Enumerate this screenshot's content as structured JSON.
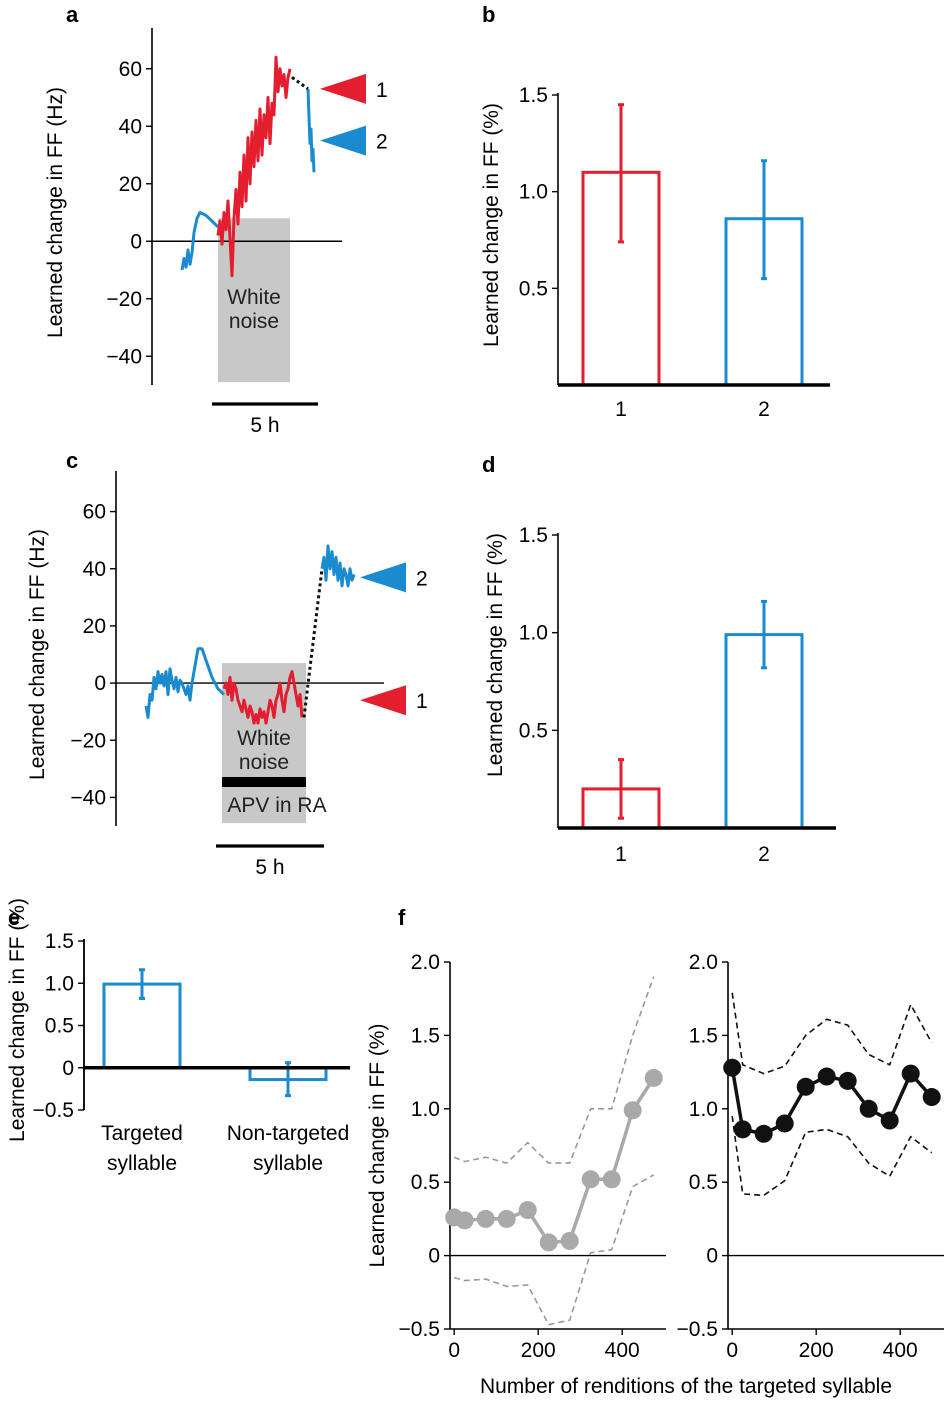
{
  "colors": {
    "red": "#e31e2e",
    "blue": "#1b8bd0",
    "gray": "#a9a9a9",
    "darkgray": "#999999",
    "black": "#111111",
    "shade": "#c8c8c8"
  },
  "panel_letters": {
    "a": "a",
    "b": "b",
    "c": "c",
    "d": "d",
    "e": "e",
    "f": "f"
  },
  "chart_data": [
    {
      "id": "a",
      "type": "line",
      "ylabel": "Learned change in FF (Hz)",
      "ylim": [
        -50,
        70
      ],
      "yticks": [
        60,
        40,
        20,
        0,
        -20,
        -40
      ],
      "yticklabels": [
        "60",
        "40",
        "20",
        "0",
        "−20",
        "−40"
      ],
      "scale_bar_label": "5 h",
      "shaded_label_1": "White",
      "shaded_label_2": "noise",
      "markers": [
        {
          "label": "1",
          "color": "red",
          "y": 53
        },
        {
          "label": "2",
          "color": "blue",
          "y": 35
        }
      ]
    },
    {
      "id": "b",
      "type": "bar",
      "ylabel": "Learned change in FF (%)",
      "ylim": [
        0,
        1.5
      ],
      "yticks": [
        1.5,
        1.0,
        0.5
      ],
      "yticklabels": [
        "1.5",
        "1.0",
        "0.5"
      ],
      "categories": [
        "1",
        "2"
      ],
      "values": [
        1.1,
        0.86
      ],
      "err_low": [
        0.74,
        0.55
      ],
      "err_high": [
        1.45,
        1.16
      ],
      "colors": [
        "red",
        "blue"
      ]
    },
    {
      "id": "c",
      "type": "line",
      "ylabel": "Learned change in FF (Hz)",
      "ylim": [
        -50,
        70
      ],
      "yticks": [
        60,
        40,
        20,
        0,
        -20,
        -40
      ],
      "yticklabels": [
        "60",
        "40",
        "20",
        "0",
        "−20",
        "−40"
      ],
      "scale_bar_label": "5 h",
      "shaded_label_1": "White",
      "shaded_label_2": "noise",
      "drug_label": "APV in RA",
      "markers": [
        {
          "label": "2",
          "color": "blue",
          "y": 37
        },
        {
          "label": "1",
          "color": "red",
          "y": -6
        }
      ]
    },
    {
      "id": "d",
      "type": "bar",
      "ylabel": "Learned change in FF (%)",
      "ylim": [
        0,
        1.5
      ],
      "yticks": [
        1.5,
        1.0,
        0.5
      ],
      "yticklabels": [
        "1.5",
        "1.0",
        "0.5"
      ],
      "categories": [
        "1",
        "2"
      ],
      "values": [
        0.2,
        0.99
      ],
      "err_low": [
        0.05,
        0.82
      ],
      "err_high": [
        0.35,
        1.16
      ],
      "colors": [
        "red",
        "blue"
      ]
    },
    {
      "id": "e",
      "type": "bar",
      "ylabel": "Learned change in FF (%)",
      "ylim": [
        -0.5,
        1.5
      ],
      "yticks": [
        1.5,
        1.0,
        0.5,
        0,
        -0.5
      ],
      "yticklabels": [
        "1.5",
        "1.0",
        "0.5",
        "0",
        "−0.5"
      ],
      "categories": [
        "Targeted syllable",
        "Non-targeted syllable"
      ],
      "category_lines": [
        [
          "Targeted",
          "syllable"
        ],
        [
          "Non-targeted",
          "syllable"
        ]
      ],
      "values": [
        0.99,
        -0.14
      ],
      "err_low": [
        0.82,
        -0.33
      ],
      "err_high": [
        1.16,
        0.06
      ],
      "colors": [
        "blue",
        "blue"
      ]
    },
    {
      "id": "f-left",
      "type": "line",
      "ylabel": "Learned change in FF (%)",
      "xlabel": "Number of renditions of the targeted syllable",
      "xlim": [
        -10,
        490
      ],
      "ylim": [
        -0.5,
        2.0
      ],
      "xticks": [
        0,
        200,
        400
      ],
      "xticklabels": [
        "0",
        "200",
        "400"
      ],
      "yticks": [
        2.0,
        1.5,
        1.0,
        0.5,
        0,
        -0.5
      ],
      "yticklabels": [
        "2.0",
        "1.5",
        "1.0",
        "0.5",
        "0",
        "−0.5"
      ],
      "x": [
        0,
        25,
        75,
        125,
        175,
        225,
        275,
        325,
        375,
        425,
        475
      ],
      "y": [
        0.26,
        0.24,
        0.25,
        0.25,
        0.31,
        0.09,
        0.1,
        0.52,
        0.52,
        0.99,
        1.21
      ],
      "upper": [
        0.67,
        0.64,
        0.67,
        0.63,
        0.77,
        0.63,
        0.63,
        1.0,
        1.0,
        1.5,
        1.9
      ],
      "lower": [
        -0.15,
        -0.17,
        -0.16,
        -0.21,
        -0.2,
        -0.47,
        -0.44,
        0.02,
        0.04,
        0.47,
        0.55
      ],
      "color": "gray"
    },
    {
      "id": "f-right",
      "type": "line",
      "xlim": [
        -10,
        490
      ],
      "ylim": [
        -0.5,
        2.0
      ],
      "xticks": [
        0,
        200,
        400
      ],
      "xticklabels": [
        "0",
        "200",
        "400"
      ],
      "yticks": [
        2.0,
        1.5,
        1.0,
        0.5,
        0,
        -0.5
      ],
      "yticklabels": [
        "2.0",
        "1.5",
        "1.0",
        "0.5",
        "0",
        "−0.5"
      ],
      "x": [
        0,
        25,
        75,
        125,
        175,
        225,
        275,
        325,
        375,
        425,
        475
      ],
      "y": [
        1.28,
        0.86,
        0.83,
        0.9,
        1.15,
        1.22,
        1.19,
        1.0,
        0.92,
        1.24,
        1.08
      ],
      "upper": [
        1.79,
        1.3,
        1.24,
        1.29,
        1.5,
        1.61,
        1.57,
        1.37,
        1.3,
        1.71,
        1.45
      ],
      "lower": [
        0.95,
        0.42,
        0.41,
        0.51,
        0.84,
        0.86,
        0.81,
        0.63,
        0.54,
        0.81,
        0.7
      ],
      "color": "black"
    }
  ]
}
